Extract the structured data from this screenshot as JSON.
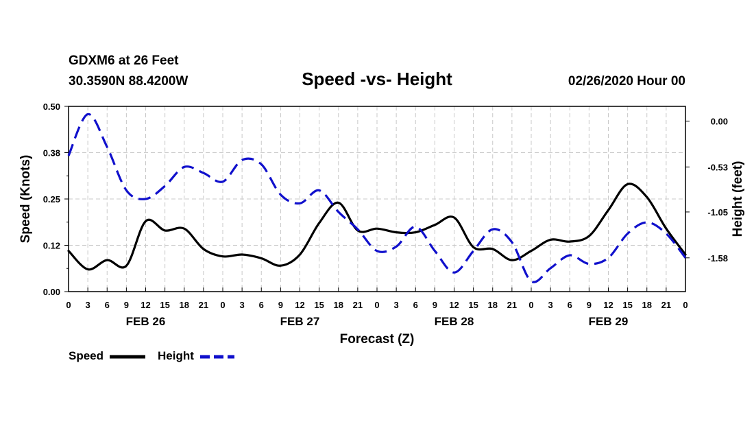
{
  "chart_data": {
    "type": "line",
    "station": "GDXM6 at 26 Feet",
    "location": "30.3590N 88.4200W",
    "title": "Speed -vs- Height",
    "run": "02/26/2020 Hour 00",
    "xlabel": "Forecast (Z)",
    "ylabel_left": "Speed (Knots)",
    "ylabel_right": "Height (feet)",
    "x_hours": [
      0,
      96
    ],
    "x_tick_labels": [
      "0",
      "3",
      "6",
      "9",
      "12",
      "15",
      "18",
      "21",
      "0",
      "3",
      "6",
      "9",
      "12",
      "15",
      "18",
      "21",
      "0",
      "3",
      "6",
      "9",
      "12",
      "15",
      "18",
      "21",
      "0",
      "3",
      "6",
      "9",
      "12",
      "15",
      "18",
      "21",
      "0"
    ],
    "day_labels": [
      {
        "label": "FEB 26",
        "hour": 12
      },
      {
        "label": "FEB 27",
        "hour": 36
      },
      {
        "label": "FEB 28",
        "hour": 60
      },
      {
        "label": "FEB 29",
        "hour": 84
      }
    ],
    "ylim_left": [
      0,
      0.5
    ],
    "yticks_left": [
      "0.00",
      "0.12",
      "0.25",
      "0.38",
      "0.50"
    ],
    "ylim_right": [
      -1.97,
      0.17
    ],
    "yticks_right": [
      {
        "label": "0.00",
        "value": 0.0
      },
      {
        "label": "-0.53",
        "value": -0.53
      },
      {
        "label": "-1.05",
        "value": -1.05
      },
      {
        "label": "-1.58",
        "value": -1.58
      }
    ],
    "series": [
      {
        "name": "Speed",
        "axis": "left",
        "color": "#000000",
        "style": "solid",
        "x": [
          0,
          3,
          6,
          9,
          12,
          15,
          18,
          21,
          24,
          27,
          30,
          33,
          36,
          39,
          42,
          45,
          48,
          51,
          54,
          57,
          60,
          63,
          66,
          69,
          72,
          75,
          78,
          81,
          84,
          87,
          90,
          93,
          96
        ],
        "y": [
          0.11,
          0.06,
          0.085,
          0.07,
          0.19,
          0.165,
          0.17,
          0.115,
          0.095,
          0.1,
          0.09,
          0.07,
          0.1,
          0.185,
          0.24,
          0.165,
          0.17,
          0.16,
          0.16,
          0.18,
          0.2,
          0.12,
          0.115,
          0.085,
          0.11,
          0.14,
          0.135,
          0.15,
          0.22,
          0.29,
          0.255,
          0.17,
          0.1
        ]
      },
      {
        "name": "Height",
        "axis": "right",
        "color": "#1010cc",
        "style": "dashed",
        "x": [
          0,
          3,
          6,
          9,
          12,
          15,
          18,
          21,
          24,
          27,
          30,
          33,
          36,
          39,
          42,
          45,
          48,
          51,
          54,
          57,
          60,
          63,
          66,
          69,
          72,
          75,
          78,
          81,
          84,
          87,
          90,
          93,
          96
        ],
        "y": [
          -0.4,
          0.08,
          -0.3,
          -0.8,
          -0.9,
          -0.75,
          -0.53,
          -0.6,
          -0.7,
          -0.45,
          -0.5,
          -0.85,
          -0.95,
          -0.8,
          -1.05,
          -1.25,
          -1.5,
          -1.45,
          -1.22,
          -1.5,
          -1.75,
          -1.5,
          -1.25,
          -1.4,
          -1.85,
          -1.7,
          -1.55,
          -1.65,
          -1.58,
          -1.3,
          -1.17,
          -1.3,
          -1.58
        ]
      }
    ],
    "legend": [
      {
        "label": "Speed",
        "color": "#000000",
        "style": "solid"
      },
      {
        "label": "Height",
        "color": "#1010cc",
        "style": "dashed"
      }
    ],
    "grid": true
  }
}
